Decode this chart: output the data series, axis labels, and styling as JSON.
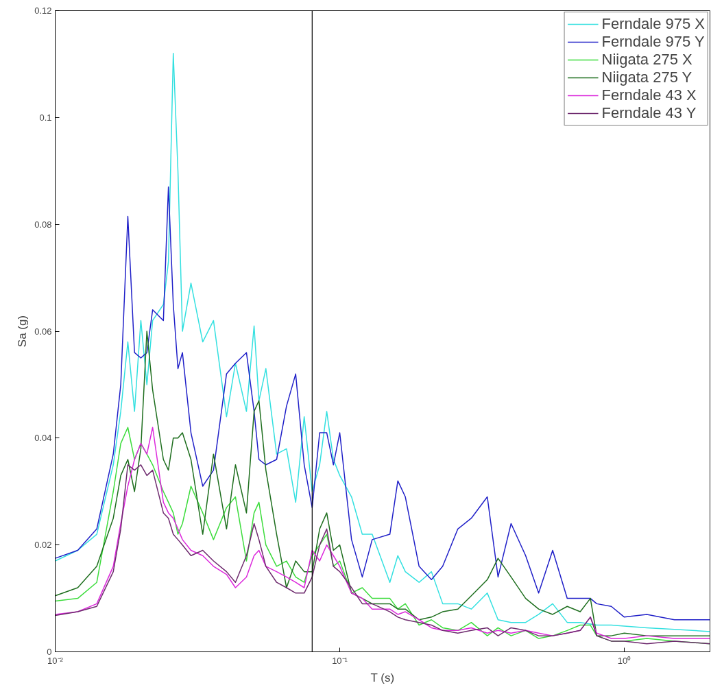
{
  "chart_data": {
    "type": "line",
    "xlabel": "T (s)",
    "ylabel": "Sa (g)",
    "log": "x",
    "grid": false,
    "legend": "top right",
    "xlim": [
      0.01,
      2
    ],
    "ylim": [
      0,
      0.12
    ],
    "xticks": [
      {
        "value": 0.01,
        "label": "10⁻²"
      },
      {
        "value": 0.1,
        "label": "10⁻¹"
      },
      {
        "value": 1,
        "label": "10⁰"
      }
    ],
    "yticks": [
      0,
      0.02,
      0.04,
      0.06,
      0.08,
      0.1,
      0.12
    ],
    "ref_lines": [
      {
        "axis": "x",
        "value": 0.08,
        "label": null,
        "color": "#000000"
      }
    ],
    "x": [
      0.01,
      0.012,
      0.014,
      0.016,
      0.017,
      0.018,
      0.019,
      0.02,
      0.021,
      0.022,
      0.024,
      0.025,
      0.026,
      0.027,
      0.028,
      0.03,
      0.033,
      0.036,
      0.04,
      0.043,
      0.047,
      0.05,
      0.052,
      0.055,
      0.06,
      0.065,
      0.07,
      0.075,
      0.08,
      0.085,
      0.09,
      0.095,
      0.1,
      0.11,
      0.12,
      0.13,
      0.15,
      0.16,
      0.17,
      0.19,
      0.21,
      0.23,
      0.26,
      0.29,
      0.33,
      0.36,
      0.4,
      0.45,
      0.5,
      0.56,
      0.63,
      0.7,
      0.76,
      0.8,
      0.9,
      1.0,
      1.2,
      1.5,
      2.0
    ],
    "series": [
      {
        "name": "Ferndale 975 X",
        "color": "#33e0e0",
        "values": [
          0.017,
          0.019,
          0.022,
          0.035,
          0.045,
          0.058,
          0.045,
          0.062,
          0.05,
          0.062,
          0.065,
          0.073,
          0.112,
          0.09,
          0.06,
          0.069,
          0.058,
          0.062,
          0.044,
          0.054,
          0.045,
          0.061,
          0.047,
          0.053,
          0.037,
          0.038,
          0.028,
          0.044,
          0.03,
          0.035,
          0.045,
          0.036,
          0.033,
          0.029,
          0.022,
          0.022,
          0.013,
          0.018,
          0.015,
          0.013,
          0.015,
          0.009,
          0.009,
          0.008,
          0.011,
          0.006,
          0.0055,
          0.0055,
          0.007,
          0.009,
          0.0055,
          0.0055,
          0.0052,
          0.005,
          0.005,
          0.0048,
          0.0045,
          0.0042,
          0.0038
        ]
      },
      {
        "name": "Ferndale 975 Y",
        "color": "#2020c8",
        "values": [
          0.0175,
          0.019,
          0.023,
          0.037,
          0.05,
          0.0815,
          0.056,
          0.055,
          0.056,
          0.064,
          0.062,
          0.087,
          0.065,
          0.053,
          0.056,
          0.041,
          0.031,
          0.034,
          0.052,
          0.054,
          0.056,
          0.045,
          0.036,
          0.035,
          0.036,
          0.046,
          0.052,
          0.035,
          0.027,
          0.041,
          0.041,
          0.035,
          0.041,
          0.021,
          0.014,
          0.021,
          0.022,
          0.032,
          0.029,
          0.016,
          0.0135,
          0.016,
          0.023,
          0.025,
          0.029,
          0.014,
          0.024,
          0.018,
          0.011,
          0.019,
          0.01,
          0.01,
          0.01,
          0.009,
          0.0085,
          0.0065,
          0.007,
          0.006,
          0.006
        ]
      },
      {
        "name": "Niigata 275 X",
        "color": "#3cdc3c",
        "values": [
          0.0095,
          0.01,
          0.013,
          0.03,
          0.039,
          0.042,
          0.036,
          0.039,
          0.037,
          0.035,
          0.03,
          0.028,
          0.026,
          0.022,
          0.024,
          0.031,
          0.026,
          0.021,
          0.027,
          0.029,
          0.017,
          0.026,
          0.028,
          0.02,
          0.016,
          0.017,
          0.014,
          0.013,
          0.018,
          0.02,
          0.022,
          0.016,
          0.017,
          0.011,
          0.012,
          0.01,
          0.01,
          0.008,
          0.009,
          0.005,
          0.006,
          0.0045,
          0.004,
          0.0055,
          0.003,
          0.0045,
          0.003,
          0.004,
          0.0025,
          0.003,
          0.004,
          0.005,
          0.005,
          0.003,
          0.002,
          0.002,
          0.0025,
          0.002,
          0.0015
        ]
      },
      {
        "name": "Niigata 275 Y",
        "color": "#1e6e1e",
        "values": [
          0.0105,
          0.012,
          0.016,
          0.025,
          0.033,
          0.036,
          0.03,
          0.038,
          0.06,
          0.049,
          0.036,
          0.034,
          0.04,
          0.04,
          0.041,
          0.036,
          0.022,
          0.037,
          0.023,
          0.035,
          0.026,
          0.045,
          0.047,
          0.034,
          0.022,
          0.012,
          0.017,
          0.015,
          0.015,
          0.023,
          0.026,
          0.019,
          0.02,
          0.011,
          0.01,
          0.009,
          0.009,
          0.008,
          0.008,
          0.006,
          0.0065,
          0.0075,
          0.008,
          0.0105,
          0.0135,
          0.0175,
          0.014,
          0.01,
          0.008,
          0.007,
          0.0085,
          0.0075,
          0.01,
          0.003,
          0.003,
          0.0035,
          0.003,
          0.003,
          0.003
        ]
      },
      {
        "name": "Ferndale 43 X",
        "color": "#dc28dc",
        "values": [
          0.007,
          0.0075,
          0.009,
          0.016,
          0.024,
          0.031,
          0.036,
          0.039,
          0.037,
          0.042,
          0.028,
          0.026,
          0.025,
          0.023,
          0.021,
          0.019,
          0.018,
          0.016,
          0.0145,
          0.012,
          0.014,
          0.018,
          0.019,
          0.016,
          0.015,
          0.014,
          0.013,
          0.012,
          0.019,
          0.017,
          0.02,
          0.018,
          0.016,
          0.011,
          0.01,
          0.008,
          0.008,
          0.007,
          0.0075,
          0.006,
          0.0045,
          0.004,
          0.004,
          0.0045,
          0.0035,
          0.004,
          0.0035,
          0.004,
          0.0035,
          0.003,
          0.0035,
          0.004,
          0.0065,
          0.0035,
          0.0025,
          0.0025,
          0.003,
          0.0025,
          0.0025
        ]
      },
      {
        "name": "Ferndale 43 Y",
        "color": "#6e2a6e",
        "values": [
          0.0068,
          0.0075,
          0.0085,
          0.015,
          0.023,
          0.035,
          0.034,
          0.035,
          0.033,
          0.034,
          0.026,
          0.025,
          0.022,
          0.021,
          0.02,
          0.018,
          0.019,
          0.017,
          0.015,
          0.013,
          0.018,
          0.024,
          0.021,
          0.016,
          0.013,
          0.012,
          0.011,
          0.011,
          0.014,
          0.02,
          0.023,
          0.016,
          0.015,
          0.012,
          0.009,
          0.009,
          0.0075,
          0.0065,
          0.006,
          0.0055,
          0.005,
          0.004,
          0.0035,
          0.004,
          0.0045,
          0.003,
          0.0045,
          0.004,
          0.003,
          0.003,
          0.0035,
          0.004,
          0.0065,
          0.003,
          0.002,
          0.002,
          0.0015,
          0.002,
          0.0015
        ]
      }
    ]
  }
}
